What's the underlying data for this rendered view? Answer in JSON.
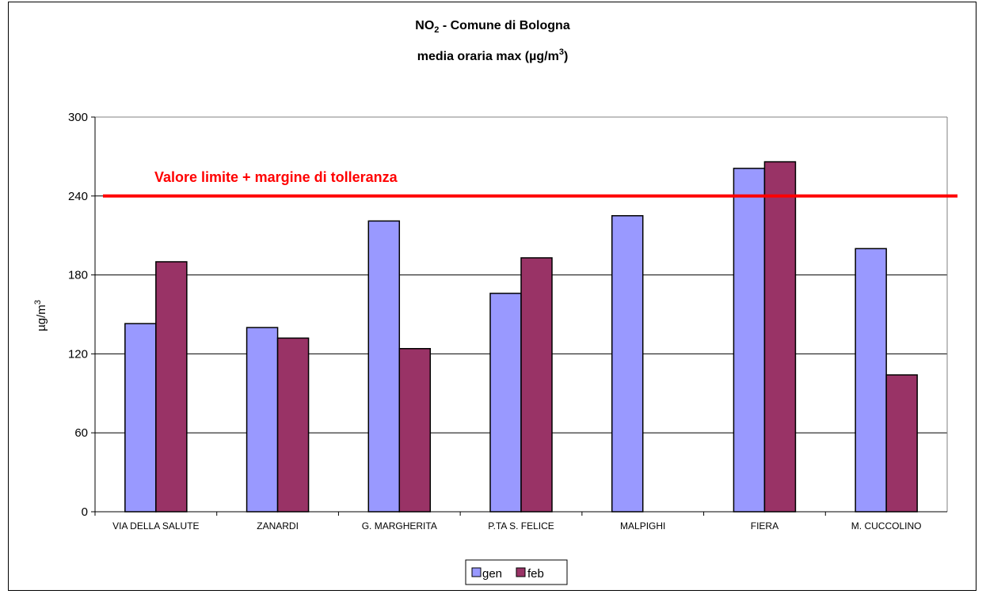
{
  "chart_data": {
    "type": "bar",
    "title": "NO",
    "title_sub": "2",
    "title_rest": " - Comune di Bologna",
    "subtitle": "media oraria max  (",
    "subtitle_unit": "µg/m",
    "subtitle_sup": "3",
    "subtitle_end": ")",
    "ylabel": "µg/m",
    "ylabel_sup": "3",
    "xlabel": "",
    "ylim": [
      0,
      300
    ],
    "yticks": [
      0,
      60,
      120,
      180,
      240,
      300
    ],
    "grid": true,
    "categories": [
      "VIA DELLA SALUTE",
      "ZANARDI",
      "G. MARGHERITA",
      "P.TA S. FELICE",
      "MALPIGHI",
      "FIERA",
      "M. CUCCOLINO"
    ],
    "series": [
      {
        "name": "gen",
        "color": "#9999ff",
        "values": [
          143,
          140,
          221,
          166,
          225,
          261,
          null
        ]
      },
      {
        "name": "feb",
        "color": "#993366",
        "values": [
          190,
          132,
          124,
          193,
          null,
          266,
          104
        ]
      }
    ],
    "series_gen_last": 200,
    "threshold": {
      "value": 240,
      "label": "Valore limite + margine di tolleranza",
      "color": "#ff0000"
    },
    "legend_position": "bottom"
  }
}
